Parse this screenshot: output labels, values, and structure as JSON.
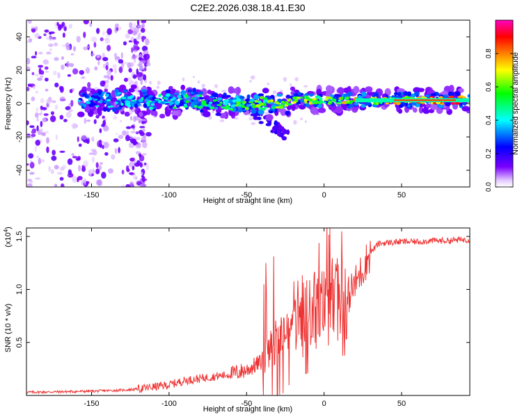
{
  "title": "C2E2.2026.038.18.41.E30",
  "chart_data": [
    {
      "type": "heatmap",
      "title": "C2E2.2026.038.18.41.E30",
      "xlabel": "Height of straight line (km)",
      "ylabel": "Frequency (Hz)",
      "xlim": [
        -192,
        94
      ],
      "ylim": [
        -50,
        50
      ],
      "xticks": [
        -150,
        -100,
        -50,
        0,
        50
      ],
      "yticks": [
        -40,
        -20,
        0,
        20,
        40
      ],
      "colorbar": {
        "label": "Normalized spectral amplitude",
        "range": [
          0,
          1
        ],
        "ticks": [
          0.0,
          0.2,
          0.4,
          0.6,
          0.8
        ],
        "tick_labels": [
          "0.0",
          "0.2",
          "0.4",
          "0.6",
          "0.8"
        ],
        "colors": [
          "#ffffff",
          "#e3c8ff",
          "#7a00ff",
          "#0000ff",
          "#00ffff",
          "#00ff00",
          "#ffff00",
          "#ff8000",
          "#ff0000",
          "#ff00c0"
        ]
      },
      "features": [
        {
          "name": "noise-region",
          "x_range": [
            -192,
            -113
          ],
          "freq_range": [
            -50,
            50
          ],
          "amplitude": 0.05
        },
        {
          "name": "signal-band",
          "x_range": [
            -158,
            94
          ],
          "center_freq_start": 2,
          "center_freq_end": 2,
          "amplitude_start": 0.35,
          "amplitude_end": 0.9
        },
        {
          "name": "dispersed-trail",
          "x_range": [
            -45,
            -25
          ],
          "freq_range": [
            -22,
            -5
          ],
          "amplitude": 0.15
        }
      ]
    },
    {
      "type": "line",
      "xlabel": "Height of straight line (km)",
      "ylabel": "SNR (10 * v/v)",
      "ylabel_exponent": "(x10",
      "ylabel_exponent_power": "4",
      "xlim": [
        -192,
        94
      ],
      "ylim": [
        0,
        1.58
      ],
      "xticks": [
        -150,
        -100,
        -50,
        0,
        50
      ],
      "yticks": [
        0.5,
        1.0,
        1.5
      ],
      "ytick_labels": [
        "0.5",
        "1.0",
        "1.5"
      ],
      "series": [
        {
          "name": "SNR",
          "color": "#ee3333",
          "x": [
            -192,
            -170,
            -150,
            -130,
            -120,
            -110,
            -100,
            -90,
            -80,
            -70,
            -60,
            -50,
            -40,
            -35,
            -30,
            -25,
            -20,
            -15,
            -10,
            -5,
            0,
            5,
            10,
            15,
            20,
            25,
            30,
            35,
            40,
            50,
            60,
            70,
            80,
            90,
            94
          ],
          "y": [
            0.03,
            0.035,
            0.04,
            0.05,
            0.06,
            0.08,
            0.1,
            0.14,
            0.16,
            0.18,
            0.2,
            0.24,
            0.32,
            0.42,
            0.55,
            0.58,
            0.72,
            0.75,
            0.76,
            0.8,
            0.82,
            0.9,
            0.92,
            0.93,
            1.05,
            1.2,
            1.35,
            1.43,
            1.44,
            1.45,
            1.45,
            1.46,
            1.46,
            1.47,
            1.47
          ]
        }
      ]
    }
  ]
}
